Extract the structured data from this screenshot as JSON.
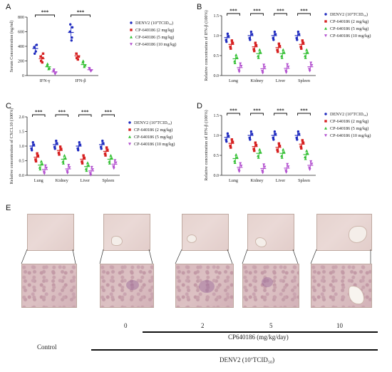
{
  "panels": {
    "A": {
      "letter": "A"
    },
    "B": {
      "letter": "B"
    },
    "C": {
      "letter": "C"
    },
    "D": {
      "letter": "D"
    },
    "E": {
      "letter": "E"
    }
  },
  "colors": {
    "denv2": "#1f2bbf",
    "cp2": "#d62020",
    "cp5": "#35c035",
    "cp10": "#b24fcf"
  },
  "legend_A": [
    "DENV2 (10⁷TCID₅₀)",
    "CP-640186 (2 mg/kg)",
    "CP-640186 (5 mg/kg)",
    "CP-640186 (10 mg/kg)"
  ],
  "legend_BCD": [
    "DENV2 (10⁷TCID₅₀)",
    "CP-640186 (2 mg/kg)",
    "CP-640186 (5 mg/kg)",
    "CP-640186 (10 mg/kg)"
  ],
  "chart_data": [
    {
      "panel": "A",
      "type": "scatter",
      "ylabel": "Serum Concentration (ng/ml)",
      "categories": [
        "IFN-γ",
        "IFN-β"
      ],
      "ylim": [
        0,
        800
      ],
      "yticks": [
        0,
        200,
        400,
        600,
        800
      ],
      "significance": "***",
      "series": [
        {
          "name": "DENV2 (10⁷TCID₅₀)",
          "mean": [
            370,
            590
          ],
          "points": [
            [
              330,
              390,
              420,
              300
            ],
            [
              480,
              600,
              660,
              700,
              520
            ]
          ]
        },
        {
          "name": "CP-640186 (2 mg/kg)",
          "mean": [
            230,
            270
          ],
          "points": [
            [
              180,
              260,
              300,
              200,
              240
            ],
            [
              220,
              300,
              260,
              240
            ]
          ]
        },
        {
          "name": "CP-640186 (5 mg/kg)",
          "mean": [
            120,
            150
          ],
          "points": [
            [
              90,
              140,
              100,
              160
            ],
            [
              120,
              180,
              140,
              200
            ]
          ]
        },
        {
          "name": "CP-640186 (10 mg/kg)",
          "mean": [
            50,
            80
          ],
          "points": [
            [
              20,
              60,
              40,
              80
            ],
            [
              60,
              100,
              70,
              90
            ]
          ]
        }
      ]
    },
    {
      "panel": "B",
      "type": "scatter",
      "ylabel": "Relative concentration of IFN-β (100%)",
      "categories": [
        "Lung",
        "Kidney",
        "Liver",
        "Spleen"
      ],
      "ylim": [
        0,
        1.5
      ],
      "yticks": [
        0.0,
        0.5,
        1.0,
        1.5
      ],
      "significance": "***",
      "series": [
        {
          "name": "DENV2 (10⁷TCID₅₀)",
          "mean": [
            0.95,
            1.0,
            1.0,
            1.0
          ]
        },
        {
          "name": "CP-640186 (2 mg/kg)",
          "mean": [
            0.78,
            0.72,
            0.7,
            0.78
          ]
        },
        {
          "name": "CP-640186 (5 mg/kg)",
          "mean": [
            0.42,
            0.55,
            0.55,
            0.55
          ]
        },
        {
          "name": "CP-640186 (10 mg/kg)",
          "mean": [
            0.2,
            0.17,
            0.18,
            0.22
          ]
        }
      ]
    },
    {
      "panel": "C",
      "type": "scatter",
      "ylabel": "Relative concentration of CXCL10 (100%)",
      "categories": [
        "Lung",
        "Kidney",
        "Liver",
        "Spleen"
      ],
      "ylim": [
        0,
        2.0
      ],
      "yticks": [
        0.0,
        0.5,
        1.0,
        1.5,
        2.0
      ],
      "significance": "***",
      "series": [
        {
          "name": "DENV2 (10⁷TCID₅₀)",
          "mean": [
            1.0,
            1.05,
            1.0,
            1.05
          ]
        },
        {
          "name": "CP-640186 (2 mg/kg)",
          "mean": [
            0.62,
            0.85,
            0.55,
            0.82
          ]
        },
        {
          "name": "CP-640186 (5 mg/kg)",
          "mean": [
            0.35,
            0.55,
            0.3,
            0.55
          ]
        },
        {
          "name": "CP-640186 (10 mg/kg)",
          "mean": [
            0.2,
            0.22,
            0.15,
            0.38
          ]
        }
      ]
    },
    {
      "panel": "D",
      "type": "scatter",
      "ylabel": "Relative concentration of IFN-β (100%)",
      "categories": [
        "Lung",
        "Kidney",
        "Liver",
        "Spleen"
      ],
      "ylim": [
        0,
        1.5
      ],
      "yticks": [
        0.0,
        0.5,
        1.0,
        1.5
      ],
      "significance": "***",
      "series": [
        {
          "name": "DENV2 (10⁷TCID₅₀)",
          "mean": [
            0.95,
            1.0,
            1.0,
            1.0
          ]
        },
        {
          "name": "CP-640186 (2 mg/kg)",
          "mean": [
            0.8,
            0.72,
            0.7,
            0.78
          ]
        },
        {
          "name": "CP-640186 (5 mg/kg)",
          "mean": [
            0.42,
            0.55,
            0.55,
            0.52
          ]
        },
        {
          "name": "CP-640186 (10 mg/kg)",
          "mean": [
            0.2,
            0.17,
            0.18,
            0.25
          ]
        }
      ]
    }
  ],
  "histology": {
    "doses": [
      "0",
      "2",
      "5",
      "10"
    ],
    "control": "Control",
    "treatment_label": "CP640186 (mg/kg/day)",
    "virus_label": "DENV2 (10⁷TCID₅₀)"
  }
}
